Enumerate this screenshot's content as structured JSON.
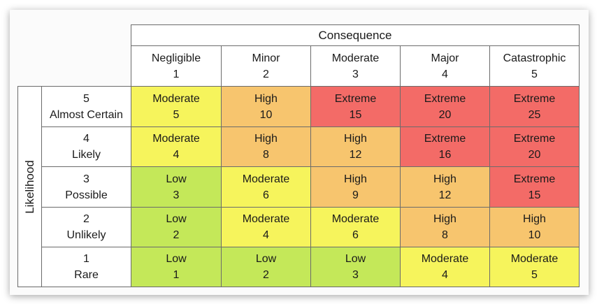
{
  "colors": {
    "low": "#c4e859",
    "moderate": "#f6f45c",
    "high": "#f7c56e",
    "extreme": "#f36b67",
    "border": "#6b6b6b",
    "text": "#1a1a1a"
  },
  "consequence": {
    "title": "Consequence",
    "columns": [
      {
        "name": "Negligible",
        "number": "1"
      },
      {
        "name": "Minor",
        "number": "2"
      },
      {
        "name": "Moderate",
        "number": "3"
      },
      {
        "name": "Major",
        "number": "4"
      },
      {
        "name": "Catastrophic",
        "number": "5"
      }
    ]
  },
  "likelihood": {
    "title": "Likelihood",
    "rows": [
      {
        "number": "5",
        "name": "Almost Certain"
      },
      {
        "number": "4",
        "name": "Likely"
      },
      {
        "number": "3",
        "name": "Possible"
      },
      {
        "number": "2",
        "name": "Unlikely"
      },
      {
        "number": "1",
        "name": "Rare"
      }
    ]
  },
  "matrix": [
    [
      {
        "level": "Moderate",
        "score": "5",
        "key": "moderate"
      },
      {
        "level": "High",
        "score": "10",
        "key": "high"
      },
      {
        "level": "Extreme",
        "score": "15",
        "key": "extreme"
      },
      {
        "level": "Extreme",
        "score": "20",
        "key": "extreme"
      },
      {
        "level": "Extreme",
        "score": "25",
        "key": "extreme"
      }
    ],
    [
      {
        "level": "Moderate",
        "score": "4",
        "key": "moderate"
      },
      {
        "level": "High",
        "score": "8",
        "key": "high"
      },
      {
        "level": "High",
        "score": "12",
        "key": "high"
      },
      {
        "level": "Extreme",
        "score": "16",
        "key": "extreme"
      },
      {
        "level": "Extreme",
        "score": "20",
        "key": "extreme"
      }
    ],
    [
      {
        "level": "Low",
        "score": "3",
        "key": "low"
      },
      {
        "level": "Moderate",
        "score": "6",
        "key": "moderate"
      },
      {
        "level": "High",
        "score": "9",
        "key": "high"
      },
      {
        "level": "High",
        "score": "12",
        "key": "high"
      },
      {
        "level": "Extreme",
        "score": "15",
        "key": "extreme"
      }
    ],
    [
      {
        "level": "Low",
        "score": "2",
        "key": "low"
      },
      {
        "level": "Moderate",
        "score": "4",
        "key": "moderate"
      },
      {
        "level": "Moderate",
        "score": "6",
        "key": "moderate"
      },
      {
        "level": "High",
        "score": "8",
        "key": "high"
      },
      {
        "level": "High",
        "score": "10",
        "key": "high"
      }
    ],
    [
      {
        "level": "Low",
        "score": "1",
        "key": "low"
      },
      {
        "level": "Low",
        "score": "2",
        "key": "low"
      },
      {
        "level": "Low",
        "score": "3",
        "key": "low"
      },
      {
        "level": "Moderate",
        "score": "4",
        "key": "moderate"
      },
      {
        "level": "Moderate",
        "score": "5",
        "key": "moderate"
      }
    ]
  ]
}
